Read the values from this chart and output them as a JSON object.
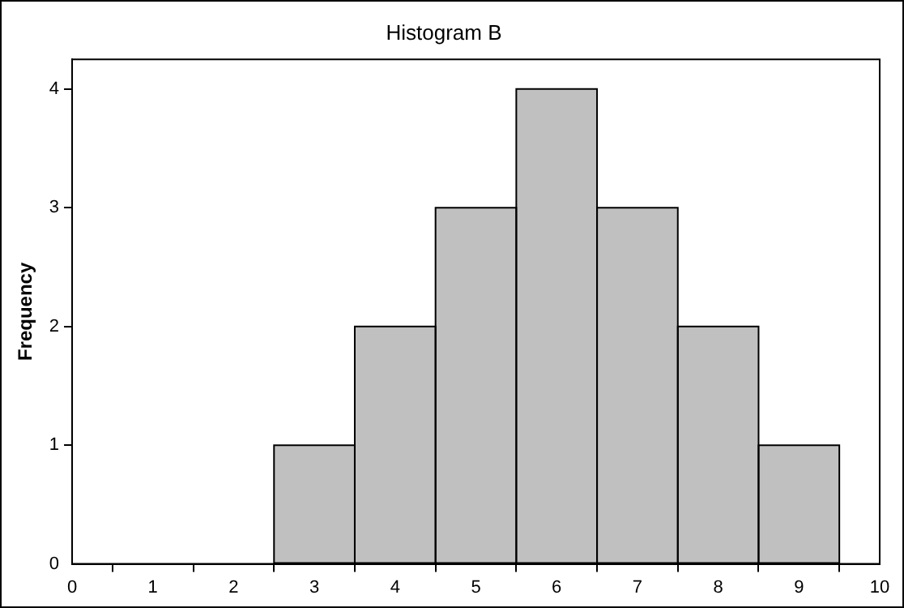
{
  "chart_data": {
    "type": "histogram",
    "title": "Histogram B",
    "ylabel": "Frequency",
    "bins": [
      2.5,
      3.5,
      4.5,
      5.5,
      6.5,
      7.5,
      8.5,
      9.5
    ],
    "values": [
      1,
      2,
      3,
      4,
      3,
      2,
      1
    ],
    "color": "#c0c0c0",
    "xlim": [
      0,
      10
    ],
    "xticks": [
      0,
      1,
      2,
      3,
      4,
      5,
      6,
      7,
      8,
      9,
      10
    ],
    "ylim": [
      0,
      4.25
    ],
    "yticks": [
      0,
      1,
      2,
      3,
      4
    ]
  }
}
